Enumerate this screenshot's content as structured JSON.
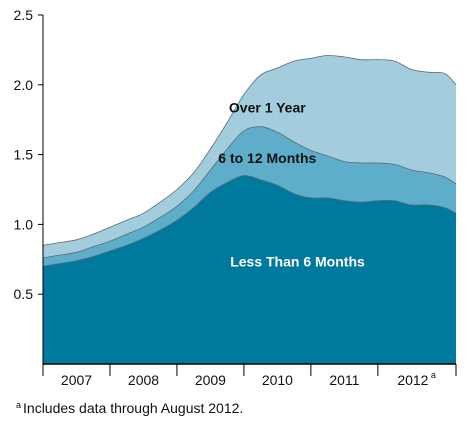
{
  "chart_data": {
    "type": "area",
    "stacked": true,
    "title": "",
    "xlabel": "",
    "ylabel": "",
    "ylim": [
      0,
      2.5
    ],
    "xlim": [
      2006.5,
      2012.667
    ],
    "yticks": [
      "0.5",
      "1.0",
      "1.5",
      "2.0",
      "2.5"
    ],
    "year_labels": [
      "2007",
      "2008",
      "2009",
      "2010",
      "2011",
      "2012"
    ],
    "last_year_marker": "a",
    "grid": false,
    "legend": "inline labels",
    "x": [
      2006.5,
      2006.75,
      2007.0,
      2007.25,
      2007.5,
      2007.75,
      2008.0,
      2008.25,
      2008.5,
      2008.75,
      2009.0,
      2009.25,
      2009.5,
      2009.75,
      2010.0,
      2010.25,
      2010.5,
      2010.75,
      2011.0,
      2011.25,
      2011.5,
      2011.75,
      2012.0,
      2012.25,
      2012.5,
      2012.667
    ],
    "series": [
      {
        "name": "Less Than 6 Months",
        "color": "#00799e",
        "values": [
          0.7,
          0.72,
          0.74,
          0.77,
          0.81,
          0.85,
          0.9,
          0.96,
          1.03,
          1.12,
          1.23,
          1.3,
          1.35,
          1.32,
          1.28,
          1.22,
          1.19,
          1.19,
          1.17,
          1.16,
          1.17,
          1.17,
          1.14,
          1.14,
          1.12,
          1.08
        ]
      },
      {
        "name": "6 to 12 Months",
        "color": "#5eaecb",
        "values": [
          0.06,
          0.06,
          0.06,
          0.07,
          0.07,
          0.08,
          0.08,
          0.09,
          0.1,
          0.12,
          0.16,
          0.24,
          0.32,
          0.38,
          0.38,
          0.37,
          0.34,
          0.3,
          0.28,
          0.28,
          0.27,
          0.26,
          0.25,
          0.23,
          0.22,
          0.21
        ]
      },
      {
        "name": "Over 1 Year",
        "color": "#a3cddd",
        "values": [
          0.09,
          0.09,
          0.09,
          0.09,
          0.1,
          0.1,
          0.1,
          0.11,
          0.12,
          0.13,
          0.15,
          0.19,
          0.26,
          0.37,
          0.46,
          0.58,
          0.66,
          0.72,
          0.75,
          0.74,
          0.74,
          0.74,
          0.72,
          0.72,
          0.74,
          0.71
        ]
      }
    ],
    "annotations": [
      {
        "text": "Over 1 Year",
        "x": 2009.85,
        "y": 1.8
      },
      {
        "text": "6 to 12 Months",
        "x": 2009.85,
        "y": 1.44
      },
      {
        "text": "Less Than 6 Months",
        "x": 2010.3,
        "y": 0.7
      }
    ]
  },
  "footnote": {
    "marker": "a",
    "text": "Includes data through August 2012."
  }
}
